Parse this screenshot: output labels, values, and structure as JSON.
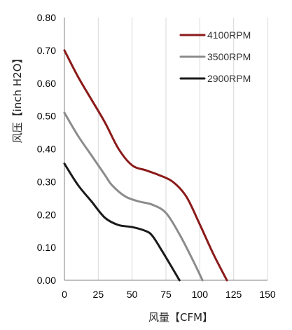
{
  "chart_data": {
    "type": "line",
    "xlabel": "风量【CFM】",
    "ylabel": "风压【inch H2O】",
    "xlim": [
      0,
      150
    ],
    "ylim": [
      0,
      0.8
    ],
    "x_ticks": [
      "0",
      "25",
      "50",
      "75",
      "100",
      "125",
      "150"
    ],
    "y_ticks": [
      "0.00",
      "0.10",
      "0.20",
      "0.30",
      "0.40",
      "0.50",
      "0.60",
      "0.70",
      "0.80"
    ],
    "grid": "vertical",
    "legend_position": "top-right",
    "series": [
      {
        "name": "4100RPM",
        "color": "#8B1A1A",
        "points": [
          [
            0,
            0.7
          ],
          [
            10,
            0.62
          ],
          [
            20,
            0.55
          ],
          [
            30,
            0.48
          ],
          [
            40,
            0.4
          ],
          [
            50,
            0.35
          ],
          [
            60,
            0.335
          ],
          [
            70,
            0.32
          ],
          [
            80,
            0.3
          ],
          [
            90,
            0.255
          ],
          [
            100,
            0.17
          ],
          [
            110,
            0.08
          ],
          [
            120,
            0.0
          ]
        ]
      },
      {
        "name": "3500RPM",
        "color": "#8C8C8C",
        "points": [
          [
            0,
            0.51
          ],
          [
            10,
            0.44
          ],
          [
            20,
            0.38
          ],
          [
            30,
            0.32
          ],
          [
            35,
            0.29
          ],
          [
            45,
            0.255
          ],
          [
            55,
            0.24
          ],
          [
            65,
            0.23
          ],
          [
            75,
            0.205
          ],
          [
            85,
            0.14
          ],
          [
            95,
            0.06
          ],
          [
            102,
            0.0
          ]
        ]
      },
      {
        "name": "2900RPM",
        "color": "#1A1A1A",
        "points": [
          [
            0,
            0.355
          ],
          [
            10,
            0.29
          ],
          [
            20,
            0.24
          ],
          [
            30,
            0.19
          ],
          [
            40,
            0.168
          ],
          [
            50,
            0.162
          ],
          [
            60,
            0.15
          ],
          [
            65,
            0.135
          ],
          [
            72,
            0.09
          ],
          [
            80,
            0.035
          ],
          [
            85,
            0.0
          ]
        ]
      }
    ]
  }
}
